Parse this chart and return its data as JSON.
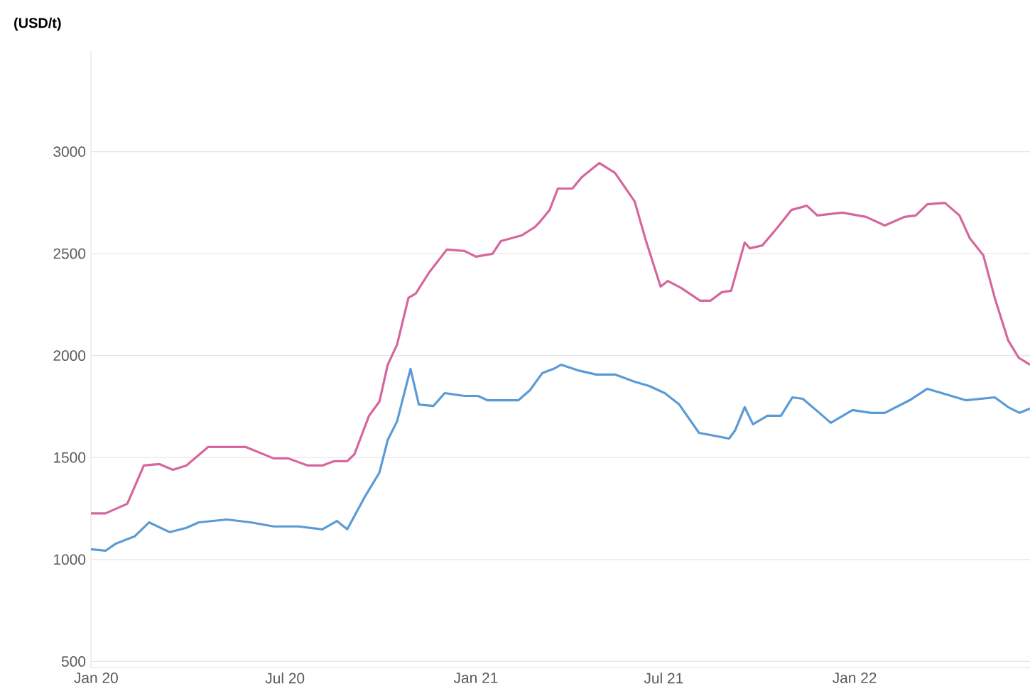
{
  "chart_data": {
    "type": "line",
    "ylabel": "(USD/t)",
    "grid": "y",
    "xlim": [
      "2019-12-27",
      "2022-06-19"
    ],
    "ylim": [
      470,
      3500
    ],
    "yticks": [
      500,
      1000,
      1500,
      2000,
      2500,
      3000
    ],
    "xticks": [
      {
        "value": "2020-01-01",
        "label": "Jan 20"
      },
      {
        "value": "2020-07-01",
        "label": "Jul 20"
      },
      {
        "value": "2021-01-01",
        "label": "Jan 21"
      },
      {
        "value": "2021-07-01",
        "label": "Jul 21"
      },
      {
        "value": "2022-01-01",
        "label": "Jan 22"
      }
    ],
    "series": [
      {
        "color": "#d6669e",
        "x": [
          "2019-12-27",
          "2020-01-10",
          "2020-01-31",
          "2020-02-16",
          "2020-03-02",
          "2020-03-15",
          "2020-03-28",
          "2020-04-18",
          "2020-05-24",
          "2020-06-20",
          "2020-07-04",
          "2020-07-23",
          "2020-08-06",
          "2020-08-17",
          "2020-08-30",
          "2020-09-06",
          "2020-09-20",
          "2020-09-30",
          "2020-10-08",
          "2020-10-17",
          "2020-10-28",
          "2020-11-04",
          "2020-11-17",
          "2020-12-04",
          "2020-12-21",
          "2021-01-01",
          "2021-01-17",
          "2021-01-25",
          "2021-02-14",
          "2021-02-27",
          "2021-03-03",
          "2021-03-13",
          "2021-03-21",
          "2021-04-04",
          "2021-04-13",
          "2021-04-30",
          "2021-05-15",
          "2021-06-03",
          "2021-06-14",
          "2021-06-28",
          "2021-07-05",
          "2021-07-18",
          "2021-08-05",
          "2021-08-15",
          "2021-08-26",
          "2021-09-04",
          "2021-09-17",
          "2021-09-22",
          "2021-10-04",
          "2021-10-18",
          "2021-11-01",
          "2021-11-16",
          "2021-11-26",
          "2021-12-20",
          "2022-01-12",
          "2022-01-30",
          "2022-02-18",
          "2022-03-01",
          "2022-03-12",
          "2022-03-29",
          "2022-04-12",
          "2022-04-22",
          "2022-05-05",
          "2022-05-16",
          "2022-05-29",
          "2022-06-08",
          "2022-06-19"
        ],
        "values": [
          1226,
          1226,
          1273,
          1461,
          1468,
          1440,
          1461,
          1552,
          1552,
          1496,
          1496,
          1461,
          1461,
          1482,
          1482,
          1517,
          1705,
          1774,
          1955,
          2053,
          2283,
          2304,
          2408,
          2520,
          2513,
          2485,
          2499,
          2561,
          2589,
          2631,
          2652,
          2714,
          2819,
          2819,
          2875,
          2944,
          2896,
          2756,
          2561,
          2338,
          2366,
          2331,
          2269,
          2269,
          2311,
          2318,
          2554,
          2526,
          2540,
          2624,
          2714,
          2735,
          2687,
          2701,
          2680,
          2638,
          2680,
          2687,
          2742,
          2749,
          2687,
          2575,
          2492,
          2283,
          2074,
          1990,
          1955
        ]
      },
      {
        "color": "#5b9bd5",
        "x": [
          "2019-12-27",
          "2020-01-10",
          "2020-01-20",
          "2020-02-07",
          "2020-02-21",
          "2020-03-12",
          "2020-03-28",
          "2020-04-09",
          "2020-05-06",
          "2020-05-29",
          "2020-06-20",
          "2020-07-14",
          "2020-08-06",
          "2020-08-20",
          "2020-08-30",
          "2020-09-16",
          "2020-09-30",
          "2020-10-08",
          "2020-10-17",
          "2020-10-30",
          "2020-11-07",
          "2020-11-21",
          "2020-12-02",
          "2020-12-21",
          "2021-01-03",
          "2021-01-12",
          "2021-02-11",
          "2021-02-22",
          "2021-03-06",
          "2021-03-17",
          "2021-03-24",
          "2021-04-09",
          "2021-04-27",
          "2021-05-15",
          "2021-06-03",
          "2021-06-17",
          "2021-07-02",
          "2021-07-16",
          "2021-08-04",
          "2021-09-02",
          "2021-09-08",
          "2021-09-17",
          "2021-09-25",
          "2021-10-09",
          "2021-10-22",
          "2021-11-02",
          "2021-11-12",
          "2021-11-28",
          "2021-12-09",
          "2021-12-30",
          "2022-01-17",
          "2022-01-30",
          "2022-02-23",
          "2022-03-12",
          "2022-03-26",
          "2022-04-18",
          "2022-05-16",
          "2022-05-29",
          "2022-06-09",
          "2022-06-19"
        ],
        "values": [
          1050,
          1043,
          1078,
          1113,
          1182,
          1134,
          1155,
          1182,
          1196,
          1182,
          1162,
          1162,
          1148,
          1189,
          1148,
          1308,
          1426,
          1586,
          1677,
          1935,
          1760,
          1753,
          1816,
          1802,
          1802,
          1781,
          1781,
          1830,
          1914,
          1935,
          1955,
          1928,
          1907,
          1907,
          1872,
          1851,
          1816,
          1760,
          1621,
          1593,
          1635,
          1747,
          1663,
          1705,
          1705,
          1795,
          1788,
          1719,
          1670,
          1733,
          1719,
          1719,
          1781,
          1837,
          1816,
          1781,
          1795,
          1747,
          1719,
          1740
        ]
      }
    ]
  }
}
